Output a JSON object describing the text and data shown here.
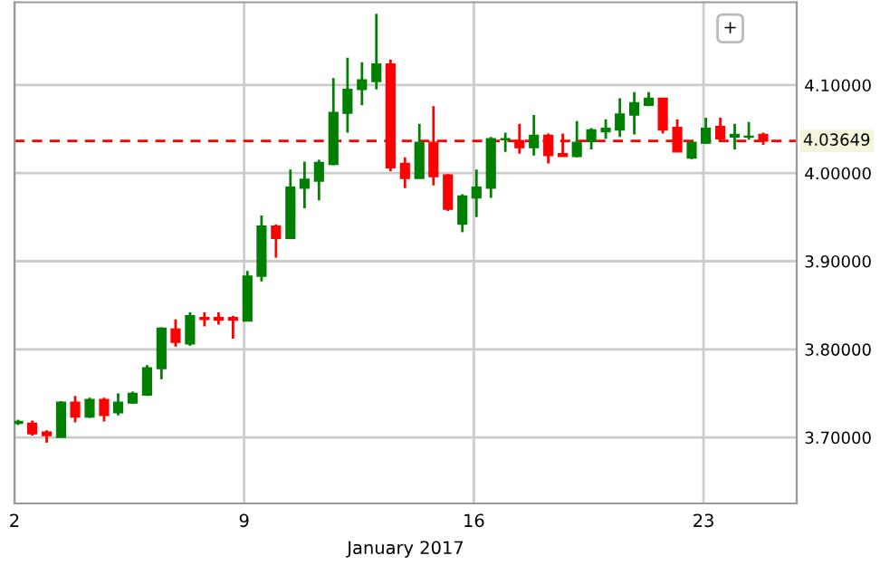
{
  "chart_data": {
    "type": "candlestick",
    "xlabel": "January 2017",
    "x": [
      2.11,
      2.54,
      2.98,
      3.42,
      3.85,
      4.29,
      4.73,
      5.16,
      5.6,
      6.04,
      6.48,
      6.91,
      7.35,
      7.79,
      8.22,
      8.66,
      9.1,
      9.53,
      9.97,
      10.41,
      10.84,
      11.28,
      11.72,
      12.15,
      12.59,
      13.03,
      13.46,
      13.9,
      14.34,
      14.77,
      15.21,
      15.65,
      16.08,
      16.52,
      16.96,
      17.39,
      17.83,
      18.27,
      18.71,
      19.14,
      19.58,
      20.02,
      20.45,
      20.89,
      21.33,
      21.76,
      22.2,
      22.64,
      23.07,
      23.51,
      23.95,
      24.38,
      24.82
    ],
    "ohlc": [
      [
        3.716,
        3.72,
        3.714,
        3.718
      ],
      [
        3.716,
        3.719,
        3.702,
        3.704
      ],
      [
        3.706,
        3.708,
        3.694,
        3.702
      ],
      [
        3.7,
        3.741,
        3.7,
        3.74
      ],
      [
        3.74,
        3.747,
        3.717,
        3.723
      ],
      [
        3.723,
        3.745,
        3.722,
        3.743
      ],
      [
        3.743,
        3.745,
        3.718,
        3.725
      ],
      [
        3.728,
        3.75,
        3.725,
        3.74
      ],
      [
        3.739,
        3.752,
        3.738,
        3.75
      ],
      [
        3.748,
        3.782,
        3.747,
        3.779
      ],
      [
        3.778,
        3.825,
        3.766,
        3.824
      ],
      [
        3.823,
        3.834,
        3.803,
        3.808
      ],
      [
        3.806,
        3.842,
        3.804,
        3.838
      ],
      [
        3.836,
        3.842,
        3.826,
        3.834
      ],
      [
        3.836,
        3.842,
        3.828,
        3.833
      ],
      [
        3.836,
        3.838,
        3.812,
        3.833
      ],
      [
        3.832,
        3.889,
        3.832,
        3.883
      ],
      [
        3.883,
        3.952,
        3.877,
        3.94
      ],
      [
        3.94,
        3.942,
        3.904,
        3.926
      ],
      [
        3.926,
        4.004,
        3.925,
        3.984
      ],
      [
        3.983,
        4.013,
        3.96,
        3.993
      ],
      [
        3.991,
        4.015,
        3.969,
        4.012
      ],
      [
        4.01,
        4.108,
        4.009,
        4.069
      ],
      [
        4.068,
        4.131,
        4.046,
        4.095
      ],
      [
        4.095,
        4.126,
        4.077,
        4.106
      ],
      [
        4.104,
        4.181,
        4.095,
        4.124
      ],
      [
        4.124,
        4.129,
        4.002,
        4.006
      ],
      [
        4.011,
        4.018,
        3.983,
        3.994
      ],
      [
        3.994,
        4.056,
        3.994,
        4.035
      ],
      [
        4.035,
        4.076,
        3.986,
        3.996
      ],
      [
        3.998,
        3.999,
        3.957,
        3.959
      ],
      [
        3.942,
        3.976,
        3.933,
        3.974
      ],
      [
        3.972,
        4.004,
        3.95,
        3.984
      ],
      [
        3.983,
        4.041,
        3.972,
        4.039
      ],
      [
        4.038,
        4.046,
        4.024,
        4.039
      ],
      [
        4.037,
        4.056,
        4.022,
        4.029
      ],
      [
        4.029,
        4.066,
        4.02,
        4.043
      ],
      [
        4.043,
        4.045,
        4.011,
        4.02
      ],
      [
        4.022,
        4.045,
        4.019,
        4.019
      ],
      [
        4.019,
        4.059,
        4.018,
        4.035
      ],
      [
        4.036,
        4.051,
        4.027,
        4.049
      ],
      [
        4.047,
        4.061,
        4.039,
        4.051
      ],
      [
        4.049,
        4.085,
        4.041,
        4.067
      ],
      [
        4.066,
        4.092,
        4.044,
        4.08
      ],
      [
        4.077,
        4.092,
        4.076,
        4.085
      ],
      [
        4.085,
        4.085,
        4.045,
        4.049
      ],
      [
        4.052,
        4.061,
        4.024,
        4.024
      ],
      [
        4.017,
        4.037,
        4.016,
        4.035
      ],
      [
        4.034,
        4.063,
        4.033,
        4.051
      ],
      [
        4.053,
        4.063,
        4.037,
        4.039
      ],
      [
        4.041,
        4.056,
        4.027,
        4.044
      ],
      [
        4.041,
        4.058,
        4.038,
        4.042
      ],
      [
        4.044,
        4.046,
        4.032,
        4.0365
      ]
    ],
    "colors": [
      "#008000",
      "#ff0000",
      "#ff0000",
      "#008000",
      "#ff0000",
      "#008000",
      "#ff0000",
      "#008000",
      "#008000",
      "#008000",
      "#008000",
      "#ff0000",
      "#008000",
      "#ff0000",
      "#ff0000",
      "#ff0000",
      "#008000",
      "#008000",
      "#ff0000",
      "#008000",
      "#008000",
      "#008000",
      "#008000",
      "#008000",
      "#008000",
      "#008000",
      "#ff0000",
      "#ff0000",
      "#008000",
      "#ff0000",
      "#ff0000",
      "#008000",
      "#008000",
      "#008000",
      "#008000",
      "#ff0000",
      "#008000",
      "#ff0000",
      "#ff0000",
      "#008000",
      "#008000",
      "#008000",
      "#008000",
      "#008000",
      "#008000",
      "#ff0000",
      "#ff0000",
      "#008000",
      "#008000",
      "#ff0000",
      "#008000",
      "#008000",
      "#ff0000"
    ],
    "xlim": [
      2,
      25.84
    ],
    "xticks": [
      2,
      9,
      16,
      23
    ],
    "ylim": [
      3.625,
      4.194
    ],
    "yticks": [
      {
        "value": 3.7,
        "label": "3.70000"
      },
      {
        "value": 3.8,
        "label": "3.80000"
      },
      {
        "value": 3.9,
        "label": "3.90000"
      },
      {
        "value": 4.0,
        "label": "4.00000"
      },
      {
        "value": 4.1,
        "label": "4.10000"
      }
    ],
    "ref_lines": [
      {
        "axis": "y",
        "value": 4.03649,
        "label": "4.03649",
        "color": "#ff0000",
        "line_style": "dashed"
      }
    ],
    "grid": true,
    "annotations": [
      "+"
    ]
  }
}
